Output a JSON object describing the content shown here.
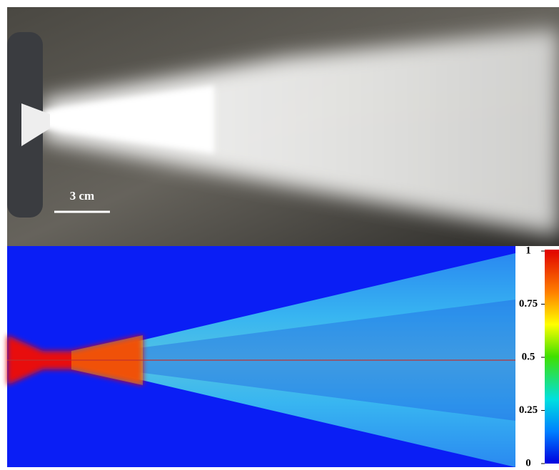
{
  "photo": {
    "scale_bar": "3 cm"
  },
  "colorbar": {
    "lim": [
      0,
      1
    ],
    "ticks": [
      1,
      0.75,
      0.5,
      0.25,
      0
    ]
  }
}
